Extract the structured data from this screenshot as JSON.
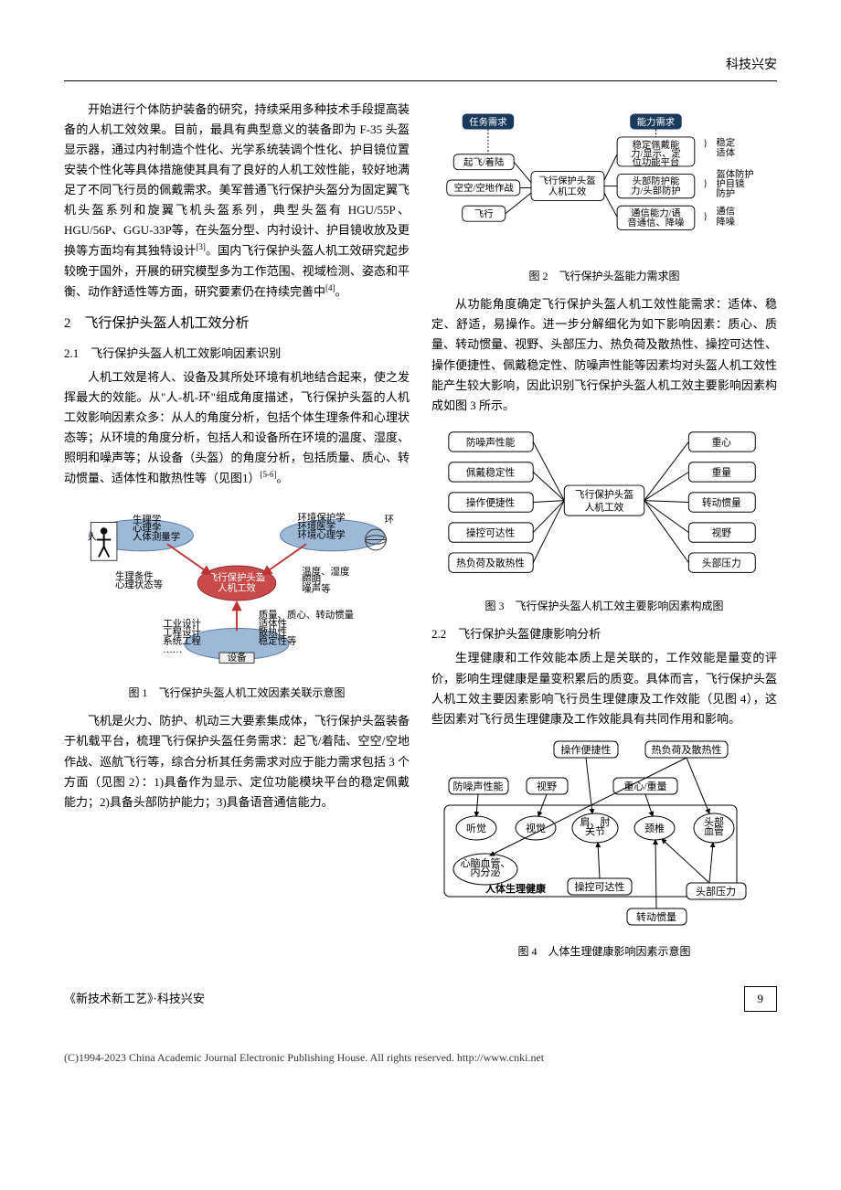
{
  "header": {
    "section_title": "科技兴安"
  },
  "left": {
    "p1": "开始进行个体防护装备的研究，持续采用多种技术手段提高装备的人机工效效果。目前，最具有典型意义的装备即为 F-35 头盔显示器，通过内衬制造个性化、光学系统装调个性化、护目镜位置安装个性化等具体措施使其具有了良好的人机工效性能，较好地满足了不同飞行员的佩戴需求。美军普通飞行保护头盔分为固定翼飞机头盔系列和旋翼飞机头盔系列，典型头盔有 HGU/55P、HGU/56P、GGU-33P等，在头盔分型、内衬设计、护目镜收放及更换等方面均有其独特设计",
    "p1_ref": "[3]",
    "p1b": "。国内飞行保护头盔人机工效研究起步较晚于国外，开展的研究模型多为工作范围、视域检测、姿态和平衡、动作舒适性等方面，研究要素仍在持续完善中",
    "p1b_ref": "[4]",
    "p1c": "。",
    "sec2": "2　飞行保护头盔人机工效分析",
    "sec21": "2.1　飞行保护头盔人机工效影响因素识别",
    "p2": "人机工效是将人、设备及其所处环境有机地结合起来，使之发挥最大的效能。从\"人-机-环\"组成角度描述，飞行保护头盔的人机工效影响因素众多：从人的角度分析，包括个体生理条件和心理状态等；从环境的角度分析，包括人和设备所在环境的温度、湿度、照明和噪声等；从设备（头盔）的角度分析，包括质量、质心、转动惯量、适体性和散热性等（见图1）",
    "p2_ref": "[5-6]",
    "p2b": "。",
    "fig1": {
      "caption": "图 1　飞行保护头盔人机工效因素关联示意图",
      "labels": {
        "human": "人",
        "human_disc": "生理学\n心理学\n人体测量学",
        "human_sub": "生理条件\n心理状态等",
        "center": "飞行保护头盔\n人机工效",
        "env": "环",
        "env_disc": "环境保护学\n环境医学\n环境心理学",
        "env_sub": "温度、湿度\n照明\n噪声等",
        "equip": "设备",
        "equip_disc": "工业设计\n工程设计\n系统工程\n……",
        "equip_sub": "质量、质心、转动惯量\n适体性\n散热性\n稳定性等"
      }
    },
    "p3": "飞机是火力、防护、机动三大要素集成体，飞行保护头盔装备于机载平台，梳理飞行保护头盔任务需求：起飞/着陆、空空/空地作战、巡航飞行等，综合分析其任务需求对应于能力需求包括 3 个方面（见图 2）：1)具备作为显示、定位功能模块平台的稳定佩戴能力；2)具备头部防护能力；3)具备语音通信能力。"
  },
  "right": {
    "fig2": {
      "caption": "图 2　飞行保护头盔能力需求图",
      "task_header": "任务需求",
      "ability_header": "能力需求",
      "tasks": [
        "起飞/着陆",
        "空空/空地作战",
        "飞行"
      ],
      "center": "飞行保护头盔\n人机工效",
      "abilities": [
        "稳定佩戴能力/显示、定位功能平台",
        "头部防护能力/头部防护",
        "通信能力/语音通信、降噪"
      ],
      "results": [
        "稳定\n适体",
        "盔体防护\n护目镜\n防护",
        "通信\n降噪"
      ]
    },
    "p4": "从功能角度确定飞行保护头盔人机工效性能需求：适体、稳定、舒适，易操作。进一步分解细化为如下影响因素：质心、质量、转动惯量、视野、头部压力、热负荷及散热性、操控可达性、操作便捷性、佩戴稳定性、防噪声性能等因素均对头盔人机工效性能产生较大影响，因此识别飞行保护头盔人机工效主要影响因素构成如图 3 所示。",
    "fig3": {
      "caption": "图 3　飞行保护头盔人机工效主要影响因素构成图",
      "center": "飞行保护头盔\n人机工效",
      "left_items": [
        "防噪声性能",
        "佩戴稳定性",
        "操作便捷性",
        "操控可达性",
        "热负荷及散热性"
      ],
      "right_items": [
        "重心",
        "重量",
        "转动惯量",
        "视野",
        "头部压力"
      ]
    },
    "sec22": "2.2　飞行保护头盔健康影响分析",
    "p5": "生理健康和工作效能本质上是关联的，工作效能是量变的评价，影响生理健康是量变积累后的质变。具体而言，飞行保护头盔人机工效主要因素影响飞行员生理健康及工作效能（见图 4），这些因素对飞行员生理健康及工作效能具有共同作用和影响。",
    "fig4": {
      "caption": "图 4　人体生理健康影响因素示意图",
      "nodes": {
        "ops": "操作便捷性",
        "heat": "热负荷及散热性",
        "noise": "防噪声性能",
        "vision_f": "视野",
        "mass": "重心/重量",
        "hearing": "听觉",
        "vision": "视觉",
        "joint": "肩、肘\n关节",
        "neck": "颈椎",
        "vessel": "头部\n血管",
        "cardio": "心脑血管、\n内分泌",
        "title": "人体生理健康",
        "reach": "操控可达性",
        "pressure": "头部压力",
        "torque": "转动惯量"
      }
    }
  },
  "footer": {
    "left": "《新技术新工艺》·科技兴安",
    "page": "9"
  },
  "copyright": "(C)1994-2023 China Academic Journal Electronic Publishing House. All rights reserved.    http://www.cnki.net"
}
